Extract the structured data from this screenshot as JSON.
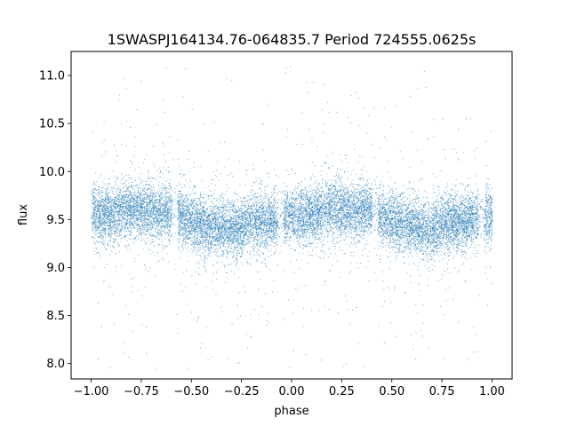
{
  "chart_data": {
    "type": "scatter",
    "title": "1SWASPJ164134.76-064835.7 Period 724555.0625s",
    "xlabel": "phase",
    "ylabel": "flux",
    "xlim": [
      -1.1,
      1.1
    ],
    "ylim": [
      7.84,
      11.25
    ],
    "xticks": [
      -1.0,
      -0.75,
      -0.5,
      -0.25,
      0.0,
      0.25,
      0.5,
      0.75,
      1.0
    ],
    "xtick_labels": [
      "−1.00",
      "−0.75",
      "−0.50",
      "−0.25",
      "0.00",
      "0.25",
      "0.50",
      "0.75",
      "1.00"
    ],
    "yticks": [
      8.0,
      8.5,
      9.0,
      9.5,
      10.0,
      10.5,
      11.0
    ],
    "ytick_labels": [
      "8.0",
      "8.5",
      "9.0",
      "9.5",
      "10.0",
      "10.5",
      "11.0"
    ],
    "grid": false,
    "point_color": "#1f77b4",
    "series": [
      {
        "phase_profile": {
          "x": [
            -1.0,
            -0.9,
            -0.82,
            -0.75,
            -0.68,
            -0.6,
            -0.5,
            -0.4,
            -0.3,
            -0.2,
            -0.1,
            0.0,
            0.1,
            0.18,
            0.25,
            0.32,
            0.4,
            0.5,
            0.6,
            0.7,
            0.8,
            0.9,
            1.0
          ],
          "y": [
            9.55,
            9.57,
            9.62,
            9.6,
            9.58,
            9.6,
            9.48,
            9.42,
            9.4,
            9.48,
            9.5,
            9.55,
            9.55,
            9.62,
            9.6,
            9.58,
            9.6,
            9.48,
            9.42,
            9.4,
            9.48,
            9.5,
            9.55
          ]
        },
        "typical_scatter": 0.15,
        "outlier_range": [
          7.95,
          11.1
        ],
        "n_points_approx": 16000
      }
    ]
  }
}
